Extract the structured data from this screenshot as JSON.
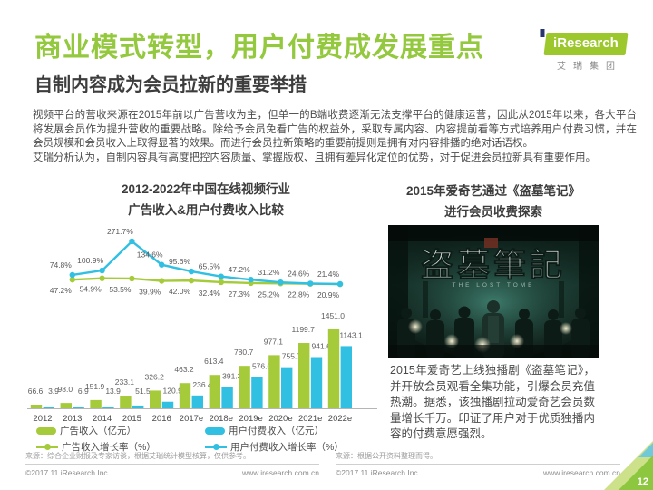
{
  "page": {
    "title": "商业模式转型，用户付费成发展重点",
    "subtitle": "自制内容成为会员拉新的重要举措",
    "page_number": "12"
  },
  "logo": {
    "brand": "iResearch",
    "sub_brand": "艾瑞集团"
  },
  "intro": {
    "p1": "视频平台的营收来源在2015年前以广告营收为主，但单一的B端收费逐渐无法支撑平台的健康运营，因此从2015年以来，各大平台将发展会员作为提升营收的重要战略。除给予会员免看广告的权益外，采取专属内容、内容提前看等方式培养用户付费习惯，并在会员规模和会员收入上取得显著的效果。而进行会员拉新策略的重要前提则是拥有对内容排播的绝对话语权。",
    "p2": "艾瑞分析认为，自制内容具有高度把控内容质量、掌握版权、且拥有差异化定位的优势，对于促进会员拉新具有重要作用。"
  },
  "left_panel": {
    "title_line1": "2012-2022年中国在线视频行业",
    "title_line2": "广告收入&用户付费收入比较",
    "source": "来源：综合企业财报及专家访谈，根据艾瑞统计模型核算，仅供参考。",
    "copyright": "©2017.11 iResearch Inc.",
    "website": "www.iresearch.com.cn"
  },
  "right_panel": {
    "title_line1": "2015年爱奇艺通过《盗墓笔记》",
    "title_line2": "进行会员收费探索",
    "poster": {
      "title": "盗墓筆記",
      "subtitle": "THE LOST TOMB"
    },
    "body": "2015年爱奇艺上线独播剧《盗墓笔记》，并开放会员观看全集功能，引爆会员充值热潮。据悉，该独播剧拉动爱奇艺会员数量增长千万。印证了用户对于优质独播内容的付费意愿强烈。",
    "source": "来源：根据公开资料整理而得。",
    "copyright": "©2017.11 iResearch Inc.",
    "website": "www.iresearch.com.cn"
  },
  "chart_data": {
    "type": "bar",
    "title": "2012-2022年中国在线视频行业 广告收入&用户付费收入比较",
    "categories": [
      "2012",
      "2013",
      "2014",
      "2015",
      "2016",
      "2017e",
      "2018e",
      "2019e",
      "2020e",
      "2021e",
      "2022e"
    ],
    "bar_series": [
      {
        "name": "广告收入（亿元）",
        "color": "#a5cb3b",
        "values": [
          66.6,
          98.0,
          151.9,
          233.1,
          326.2,
          463.2,
          613.4,
          780.7,
          977.1,
          1199.7,
          1451.0
        ]
      },
      {
        "name": "用户付费收入（亿元）",
        "color": "#31bfe2",
        "values": [
          3.9,
          6.9,
          13.9,
          51.5,
          120.9,
          236.4,
          391.3,
          576.0,
          755.7,
          941.6,
          1143.1
        ]
      }
    ],
    "line_series": [
      {
        "name": "广告收入增长率（%）",
        "color": "#a5cb3b",
        "start_category": "2013",
        "values": [
          47.2,
          54.9,
          53.5,
          39.9,
          42.0,
          32.4,
          27.3,
          25.2,
          22.8,
          20.9
        ]
      },
      {
        "name": "用户付费收入增长率（%）",
        "color": "#31bfe2",
        "start_category": "2013",
        "values": [
          74.8,
          100.9,
          271.7,
          134.6,
          95.6,
          65.5,
          47.2,
          31.2,
          24.6,
          21.4
        ]
      }
    ],
    "ylim": [
      0,
      1500
    ],
    "grid": false,
    "legend_position": "bottom"
  },
  "colors": {
    "title_green": "#94c83e",
    "ad_green": "#a5cb3b",
    "paid_cyan": "#31bfe2",
    "corner_green": "#8dc63f"
  }
}
